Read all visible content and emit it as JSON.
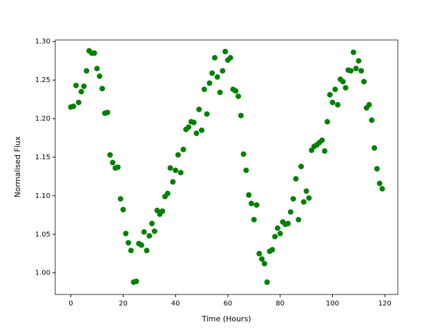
{
  "chart_data": {
    "type": "scatter",
    "color": "#008000",
    "x_label": "Time (Hours)",
    "y_label": "Normalised Flux",
    "x": [
      0,
      1,
      2,
      3,
      4,
      5,
      6,
      7,
      8,
      9,
      10,
      11,
      12,
      13,
      14,
      15,
      16,
      17,
      18,
      19,
      20,
      21,
      22,
      23,
      24,
      25,
      26,
      27,
      28,
      29,
      30,
      31,
      32,
      33,
      34,
      35,
      36,
      37,
      38,
      39,
      40,
      41,
      42,
      43,
      44,
      45,
      46,
      47,
      48,
      49,
      50,
      51,
      52,
      53,
      54,
      55,
      56,
      57,
      58,
      59,
      60,
      61,
      62,
      63,
      64,
      65,
      66,
      67,
      68,
      69,
      70,
      71,
      72,
      73,
      74,
      75,
      76,
      77,
      78,
      79,
      80,
      81,
      82,
      83,
      84,
      85,
      86,
      87,
      88,
      89,
      90,
      91,
      92,
      93,
      94,
      95,
      96,
      97,
      98,
      99,
      100,
      101,
      102,
      103,
      104,
      105,
      106,
      107,
      108,
      109,
      110,
      111,
      112,
      113,
      114,
      115,
      116,
      117,
      118,
      119
    ],
    "values": [
      1.215,
      1.216,
      1.243,
      1.221,
      1.235,
      1.242,
      1.262,
      1.288,
      1.285,
      1.285,
      1.265,
      1.255,
      1.239,
      1.207,
      1.208,
      1.153,
      1.143,
      1.136,
      1.137,
      1.096,
      1.082,
      1.051,
      1.039,
      1.029,
      0.988,
      0.989,
      1.038,
      1.036,
      1.053,
      1.029,
      1.048,
      1.064,
      1.054,
      1.081,
      1.076,
      1.08,
      1.099,
      1.103,
      1.136,
      1.118,
      1.133,
      1.153,
      1.13,
      1.16,
      1.186,
      1.189,
      1.196,
      1.195,
      1.181,
      1.212,
      1.185,
      1.238,
      1.206,
      1.246,
      1.259,
      1.279,
      1.254,
      1.234,
      1.262,
      1.287,
      1.276,
      1.279,
      1.238,
      1.236,
      1.229,
      1.204,
      1.154,
      1.133,
      1.101,
      1.09,
      1.069,
      1.088,
      1.025,
      1.018,
      1.012,
      0.988,
      1.028,
      1.03,
      1.047,
      1.058,
      1.051,
      1.066,
      1.063,
      1.064,
      1.079,
      1.096,
      1.122,
      1.069,
      1.138,
      1.092,
      1.106,
      1.097,
      1.159,
      1.164,
      1.166,
      1.169,
      1.172,
      1.158,
      1.196,
      1.231,
      1.221,
      1.238,
      1.218,
      1.251,
      1.248,
      1.24,
      1.263,
      1.262,
      1.286,
      1.265,
      1.275,
      1.262,
      1.248,
      1.214,
      1.218,
      1.198,
      1.162,
      1.135,
      1.116,
      1.109
    ],
    "xlim": [
      -5.95,
      124.95
    ],
    "ylim": [
      0.972,
      1.302
    ],
    "xticks": [
      0,
      20,
      40,
      60,
      80,
      100,
      120
    ],
    "yticks": [
      {
        "value": 1.0,
        "label": "1.00"
      },
      1.05,
      {
        "value": 1.1,
        "label": "1.10"
      },
      1.15,
      {
        "value": 1.2,
        "label": "1.20"
      },
      1.25,
      {
        "value": 1.3,
        "label": "1.30"
      }
    ]
  }
}
